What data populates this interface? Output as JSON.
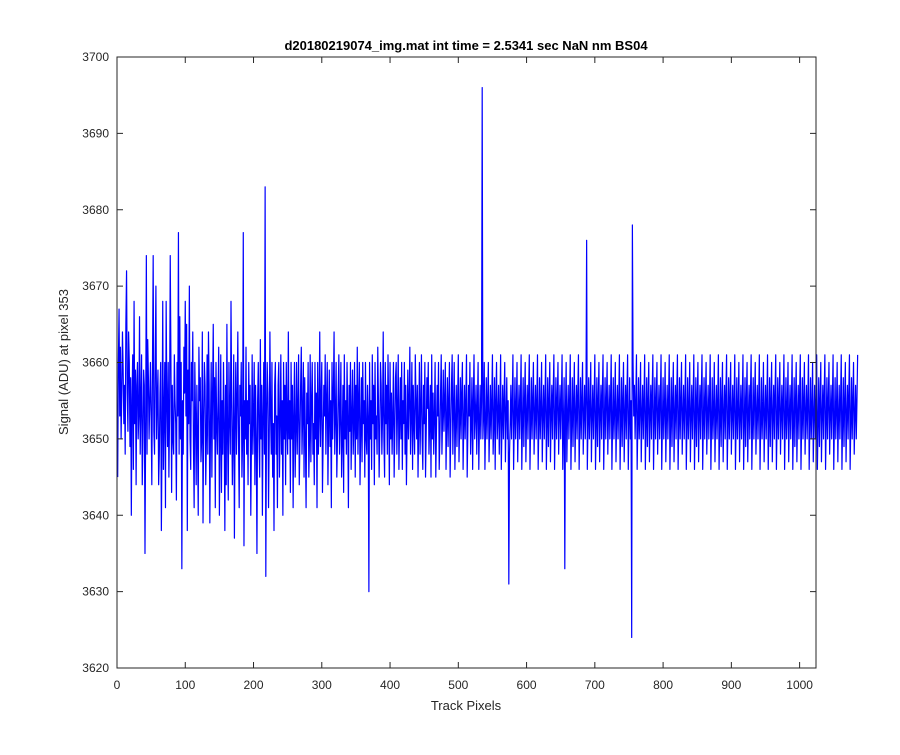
{
  "chart_data": {
    "type": "line",
    "title": "d20180219074_img.mat int time = 2.5341 sec  NaN nm BS04",
    "xlabel": "Track Pixels",
    "ylabel": "Signal (ADU) at pixel 353",
    "xlim": [
      0,
      1024
    ],
    "ylim": [
      3620,
      3700
    ],
    "xticks": [
      0,
      100,
      200,
      300,
      400,
      500,
      600,
      700,
      800,
      900,
      1000
    ],
    "yticks": [
      3620,
      3630,
      3640,
      3650,
      3660,
      3670,
      3680,
      3690,
      3700
    ],
    "grid": false,
    "legend": "none",
    "series": [
      {
        "color": "#0000ff",
        "x_start": 1,
        "x_step": 1,
        "values": [
          3645,
          3660,
          3667,
          3653,
          3662,
          3650,
          3656,
          3664,
          3659,
          3652,
          3657,
          3648,
          3665,
          3672,
          3656,
          3651,
          3664,
          3660,
          3649,
          3658,
          3640,
          3655,
          3661,
          3646,
          3668,
          3652,
          3659,
          3644,
          3657,
          3660,
          3650,
          3653,
          3666,
          3648,
          3655,
          3661,
          3644,
          3650,
          3659,
          3657,
          3635,
          3652,
          3674,
          3648,
          3663,
          3658,
          3650,
          3655,
          3660,
          3653,
          3644,
          3660,
          3674,
          3651,
          3648,
          3660,
          3670,
          3650,
          3655,
          3659,
          3644,
          3648,
          3656,
          3660,
          3638,
          3650,
          3668,
          3646,
          3653,
          3660,
          3641,
          3668,
          3655,
          3649,
          3660,
          3645,
          3653,
          3674,
          3660,
          3643,
          3657,
          3650,
          3648,
          3661,
          3655,
          3652,
          3642,
          3660,
          3653,
          3677,
          3648,
          3666,
          3650,
          3660,
          3633,
          3655,
          3648,
          3662,
          3656,
          3668,
          3653,
          3665,
          3638,
          3659,
          3652,
          3670,
          3650,
          3646,
          3660,
          3655,
          3664,
          3649,
          3641,
          3660,
          3653,
          3644,
          3657,
          3650,
          3640,
          3662,
          3655,
          3658,
          3647,
          3650,
          3664,
          3639,
          3652,
          3660,
          3657,
          3644,
          3650,
          3661,
          3648,
          3664,
          3657,
          3639,
          3652,
          3660,
          3645,
          3656,
          3665,
          3650,
          3658,
          3641,
          3660,
          3652,
          3648,
          3655,
          3662,
          3640,
          3650,
          3661,
          3643,
          3655,
          3648,
          3660,
          3652,
          3638,
          3657,
          3644,
          3665,
          3650,
          3642,
          3660,
          3653,
          3648,
          3668,
          3655,
          3644,
          3650,
          3661,
          3637,
          3652,
          3660,
          3648,
          3655,
          3664,
          3650,
          3641,
          3657,
          3653,
          3660,
          3645,
          3650,
          3677,
          3636,
          3655,
          3650,
          3662,
          3648,
          3655,
          3644,
          3660,
          3652,
          3657,
          3640,
          3650,
          3661,
          3648,
          3653,
          3660,
          3644,
          3657,
          3650,
          3635,
          3655,
          3660,
          3650,
          3645,
          3663,
          3650,
          3657,
          3640,
          3653,
          3660,
          3648,
          3683,
          3632,
          3652,
          3660,
          3656,
          3641,
          3650,
          3664,
          3653,
          3648,
          3660,
          3645,
          3652,
          3638,
          3657,
          3660,
          3648,
          3653,
          3641,
          3657,
          3660,
          3645,
          3652,
          3661,
          3648,
          3655,
          3640,
          3660,
          3650,
          3657,
          3644,
          3660,
          3652,
          3648,
          3664,
          3650,
          3655,
          3643,
          3660,
          3650,
          3657,
          3641,
          3653,
          3660,
          3645,
          3651,
          3660,
          3648,
          3654,
          3661,
          3644,
          3650,
          3657,
          3662,
          3648,
          3653,
          3660,
          3645,
          3658,
          3650,
          3641,
          3656,
          3652,
          3660,
          3645,
          3650,
          3661,
          3647,
          3655,
          3660,
          3648,
          3652,
          3644,
          3660,
          3650,
          3656,
          3641,
          3660,
          3648,
          3653,
          3664,
          3649,
          3655,
          3660,
          3643,
          3650,
          3657,
          3653,
          3661,
          3648,
          3655,
          3660,
          3644,
          3652,
          3659,
          3649,
          3655,
          3641,
          3660,
          3650,
          3656,
          3664,
          3648,
          3653,
          3660,
          3645,
          3650,
          3656,
          3661,
          3648,
          3653,
          3660,
          3645,
          3650,
          3657,
          3643,
          3661,
          3650,
          3655,
          3648,
          3660,
          3653,
          3641,
          3657,
          3651,
          3660,
          3646,
          3653,
          3659,
          3648,
          3652,
          3660,
          3645,
          3657,
          3650,
          3662,
          3648,
          3655,
          3660,
          3644,
          3651,
          3658,
          3647,
          3660,
          3652,
          3655,
          3645,
          3660,
          3650,
          3648,
          3657,
          3653,
          3630,
          3660,
          3650,
          3655,
          3646,
          3661,
          3652,
          3657,
          3644,
          3660,
          3650,
          3653,
          3648,
          3662,
          3655,
          3645,
          3651,
          3660,
          3657,
          3648,
          3653,
          3664,
          3650,
          3645,
          3660,
          3652,
          3657,
          3648,
          3661,
          3654,
          3644,
          3660,
          3650,
          3656,
          3648,
          3653,
          3660,
          3645,
          3651,
          3658,
          3660,
          3648,
          3654,
          3661,
          3646,
          3652,
          3658,
          3650,
          3660,
          3646,
          3655,
          3652,
          3660,
          3648,
          3657,
          3644,
          3651,
          3659,
          3650,
          3655,
          3662,
          3648,
          3653,
          3660,
          3646,
          3657,
          3652,
          3648,
          3661,
          3655,
          3650,
          3657,
          3645,
          3652,
          3660,
          3648,
          3654,
          3661,
          3650,
          3646,
          3657,
          3652,
          3660,
          3645,
          3651,
          3658,
          3654,
          3660,
          3648,
          3652,
          3657,
          3645,
          3661,
          3650,
          3656,
          3648,
          3653,
          3660,
          3645,
          3651,
          3657,
          3653,
          3660,
          3646,
          3650,
          3656,
          3661,
          3648,
          3653,
          3659,
          3651,
          3655,
          3660,
          3646,
          3652,
          3658,
          3649,
          3655,
          3660,
          3645,
          3651,
          3657,
          3661,
          3648,
          3654,
          3660,
          3646,
          3652,
          3657,
          3649,
          3655,
          3661,
          3647,
          3652,
          3658,
          3650,
          3656,
          3660,
          3646,
          3652,
          3657,
          3650,
          3655,
          3661,
          3645,
          3651,
          3657,
          3653,
          3660,
          3648,
          3652,
          3658,
          3646,
          3655,
          3661,
          3650,
          3653,
          3657,
          3648,
          3654,
          3660,
          3646,
          3652,
          3657,
          3650,
          3655,
          3696,
          3650,
          3653,
          3660,
          3646,
          3652,
          3658,
          3650,
          3655,
          3660,
          3647,
          3652,
          3657,
          3650,
          3655,
          3661,
          3648,
          3652,
          3658,
          3646,
          3655,
          3660,
          3650,
          3653,
          3657,
          3648,
          3654,
          3661,
          3646,
          3652,
          3657,
          3650,
          3655,
          3660,
          3647,
          3653,
          3658,
          3650,
          3655,
          3631,
          3648,
          3652,
          3657,
          3650,
          3655,
          3661,
          3646,
          3652,
          3658,
          3650,
          3654,
          3660,
          3647,
          3653,
          3657,
          3650,
          3655,
          3661,
          3646,
          3652,
          3658,
          3649,
          3655,
          3660,
          3647,
          3653,
          3657,
          3650,
          3656,
          3661,
          3646,
          3652,
          3658,
          3650,
          3655,
          3660,
          3648,
          3653,
          3657,
          3650,
          3655,
          3661,
          3646,
          3652,
          3658,
          3650,
          3654,
          3660,
          3647,
          3653,
          3657,
          3650,
          3655,
          3661,
          3646,
          3652,
          3658,
          3649,
          3655,
          3660,
          3647,
          3653,
          3657,
          3650,
          3656,
          3661,
          3646,
          3652,
          3658,
          3650,
          3655,
          3660,
          3648,
          3653,
          3657,
          3650,
          3655,
          3661,
          3646,
          3652,
          3658,
          3633,
          3654,
          3660,
          3647,
          3653,
          3657,
          3650,
          3655,
          3661,
          3646,
          3652,
          3658,
          3649,
          3655,
          3660,
          3647,
          3653,
          3657,
          3650,
          3656,
          3661,
          3646,
          3652,
          3658,
          3650,
          3655,
          3660,
          3648,
          3653,
          3657,
          3650,
          3655,
          3676,
          3646,
          3652,
          3658,
          3650,
          3654,
          3660,
          3647,
          3653,
          3657,
          3650,
          3655,
          3661,
          3646,
          3652,
          3658,
          3649,
          3655,
          3660,
          3647,
          3653,
          3657,
          3650,
          3656,
          3661,
          3646,
          3652,
          3658,
          3650,
          3655,
          3660,
          3648,
          3653,
          3657,
          3650,
          3655,
          3661,
          3646,
          3652,
          3658,
          3650,
          3654,
          3660,
          3647,
          3653,
          3657,
          3650,
          3655,
          3661,
          3646,
          3652,
          3658,
          3649,
          3655,
          3660,
          3647,
          3653,
          3657,
          3650,
          3656,
          3661,
          3646,
          3652,
          3658,
          3650,
          3655,
          3624,
          3678,
          3660,
          3653,
          3657,
          3650,
          3655,
          3661,
          3646,
          3652,
          3658,
          3650,
          3654,
          3660,
          3647,
          3653,
          3657,
          3650,
          3655,
          3661,
          3646,
          3652,
          3658,
          3649,
          3655,
          3660,
          3647,
          3653,
          3657,
          3650,
          3656,
          3661,
          3646,
          3652,
          3658,
          3650,
          3655,
          3660,
          3648,
          3653,
          3657,
          3650,
          3655,
          3661,
          3646,
          3652,
          3658,
          3650,
          3654,
          3660,
          3647,
          3653,
          3657,
          3650,
          3655,
          3661,
          3646,
          3652,
          3658,
          3649,
          3655,
          3660,
          3647,
          3653,
          3657,
          3650,
          3656,
          3661,
          3646,
          3652,
          3658,
          3650,
          3655,
          3660,
          3648,
          3653,
          3657,
          3650,
          3655,
          3661,
          3646,
          3652,
          3658,
          3650,
          3654,
          3660,
          3647,
          3653,
          3657,
          3650,
          3655,
          3661,
          3646,
          3652,
          3658,
          3649,
          3655,
          3660,
          3647,
          3653,
          3657,
          3650,
          3656,
          3661,
          3646,
          3652,
          3658,
          3650,
          3655,
          3660,
          3648,
          3653,
          3657,
          3650,
          3655,
          3661,
          3646,
          3652,
          3658,
          3650,
          3654,
          3660,
          3647,
          3653,
          3657,
          3650,
          3655,
          3661,
          3646,
          3652,
          3658,
          3649,
          3655,
          3660,
          3647,
          3653,
          3657,
          3650,
          3656,
          3661,
          3646,
          3652,
          3658,
          3650,
          3655,
          3660,
          3648,
          3653,
          3657,
          3650,
          3655,
          3661,
          3646,
          3652,
          3658,
          3650,
          3654,
          3660,
          3647,
          3653,
          3657,
          3650,
          3655,
          3661,
          3646,
          3652,
          3658,
          3649,
          3655,
          3660,
          3647,
          3653,
          3657,
          3650,
          3656,
          3661,
          3646,
          3652,
          3658,
          3650,
          3655,
          3660,
          3648,
          3653,
          3657,
          3650,
          3655,
          3661,
          3646,
          3652,
          3658,
          3650,
          3654,
          3660,
          3647,
          3653,
          3657,
          3650,
          3655,
          3661,
          3646,
          3652,
          3658,
          3649,
          3655,
          3660,
          3647,
          3653,
          3657,
          3650,
          3656,
          3661,
          3646,
          3652,
          3658,
          3650,
          3655,
          3660,
          3648,
          3653,
          3657,
          3650,
          3655,
          3661,
          3646,
          3652,
          3658,
          3650,
          3654,
          3660,
          3647,
          3653,
          3657,
          3650,
          3655,
          3661,
          3646,
          3652,
          3658,
          3649,
          3655,
          3660,
          3647,
          3653,
          3657,
          3650,
          3656,
          3661,
          3646,
          3652,
          3658,
          3650,
          3655,
          3660,
          3648,
          3653,
          3657,
          3650,
          3655,
          3661,
          3646,
          3652,
          3658,
          3650,
          3654,
          3660,
          3647,
          3653,
          3657,
          3650,
          3655,
          3661,
          3646,
          3652,
          3658,
          3649,
          3655,
          3660,
          3647,
          3653,
          3657,
          3650,
          3656,
          3661,
          3646,
          3652,
          3658,
          3650,
          3655,
          3660,
          3648,
          3653,
          3657,
          3650,
          3655,
          3661,
          3646,
          3652,
          3658,
          3650,
          3654,
          3660,
          3647,
          3653,
          3657,
          3650,
          3655,
          3661,
          3646,
          3652,
          3658,
          3649,
          3655,
          3660,
          3647,
          3653,
          3657,
          3650,
          3656,
          3661,
          3646,
          3652,
          3658,
          3650,
          3655,
          3660,
          3648,
          3653,
          3657,
          3650,
          3655,
          3661
        ]
      }
    ]
  }
}
